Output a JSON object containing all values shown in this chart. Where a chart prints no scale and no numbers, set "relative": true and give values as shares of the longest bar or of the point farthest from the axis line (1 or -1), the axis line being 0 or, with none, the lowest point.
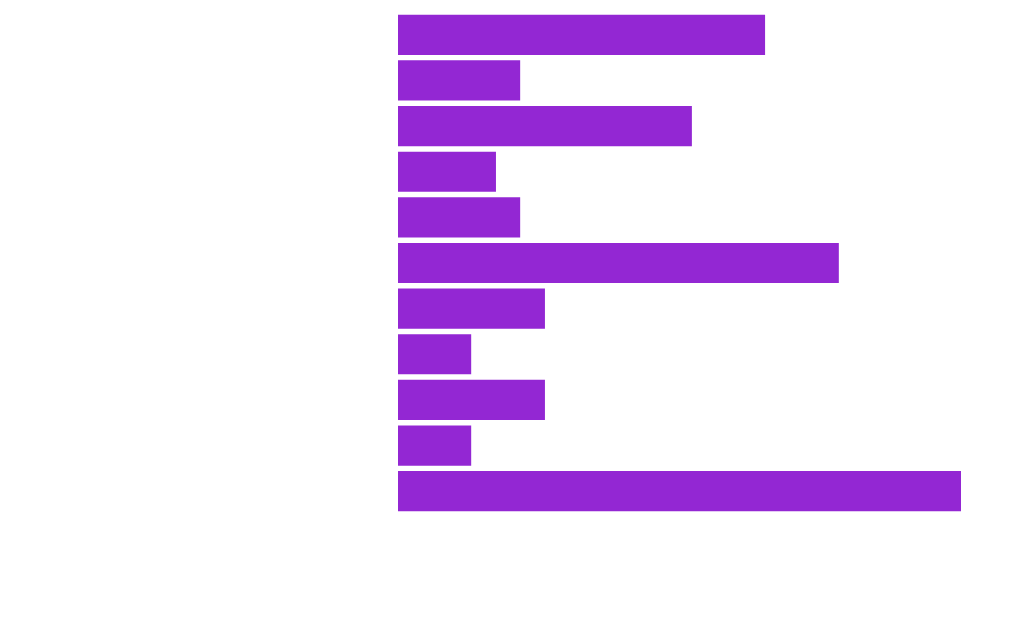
{
  "chart_data": {
    "type": "bar",
    "orientation": "horizontal",
    "relative": true,
    "categories": [
      null,
      null,
      null,
      null,
      null,
      null,
      null,
      null,
      null,
      null,
      null
    ],
    "values": [
      0.652,
      0.217,
      0.522,
      0.174,
      0.217,
      0.783,
      0.261,
      0.13,
      0.261,
      0.13,
      1
    ],
    "color": "#9327d3"
  }
}
